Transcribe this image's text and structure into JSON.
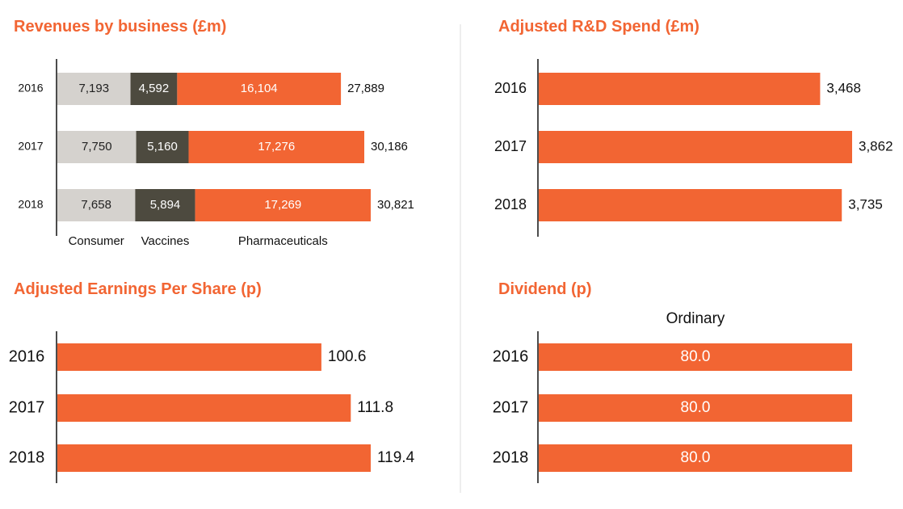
{
  "chart_data": [
    {
      "type": "stacked_bar",
      "title": "Revenues by business (£m)",
      "categories": [
        "2016",
        "2017",
        "2018"
      ],
      "series": [
        {
          "name": "Consumer",
          "color": "#d5d2ce",
          "label_color": "#222222",
          "values": [
            7193,
            7750,
            7658
          ],
          "value_labels": [
            "7,193",
            "7,750",
            "7,658"
          ]
        },
        {
          "name": "Vaccines",
          "color": "#4d4a3f",
          "label_color": "#ffffff",
          "values": [
            4592,
            5160,
            5894
          ],
          "value_labels": [
            "4,592",
            "5,160",
            "5,894"
          ]
        },
        {
          "name": "Pharmaceuticals",
          "color": "#f26533",
          "label_color": "#ffffff",
          "values": [
            16104,
            17276,
            17269
          ],
          "value_labels": [
            "16,104",
            "17,276",
            "17,269"
          ]
        }
      ],
      "totals": [
        27889,
        30186,
        30821
      ],
      "total_labels": [
        "27,889",
        "30,186",
        "30,821"
      ]
    },
    {
      "type": "bar",
      "title": "Adjusted R&D Spend (£m)",
      "categories": [
        "2016",
        "2017",
        "2018"
      ],
      "color": "#f26533",
      "values": [
        3468,
        3862,
        3735
      ],
      "value_labels": [
        "3,468",
        "3,862",
        "3,735"
      ]
    },
    {
      "type": "bar",
      "title": "Adjusted Earnings Per Share (p)",
      "categories": [
        "2016",
        "2017",
        "2018"
      ],
      "color": "#f26533",
      "values": [
        100.6,
        111.8,
        119.4
      ]
    },
    {
      "type": "bar",
      "title": "Dividend (p)",
      "categories": [
        "2016",
        "2017",
        "2018"
      ],
      "series": [
        {
          "name": "Ordinary",
          "color": "#f26533",
          "values": [
            80,
            80,
            80
          ],
          "value_labels": [
            "80.0",
            "80.0",
            "80.0"
          ],
          "label_inside": true
        }
      ]
    }
  ]
}
